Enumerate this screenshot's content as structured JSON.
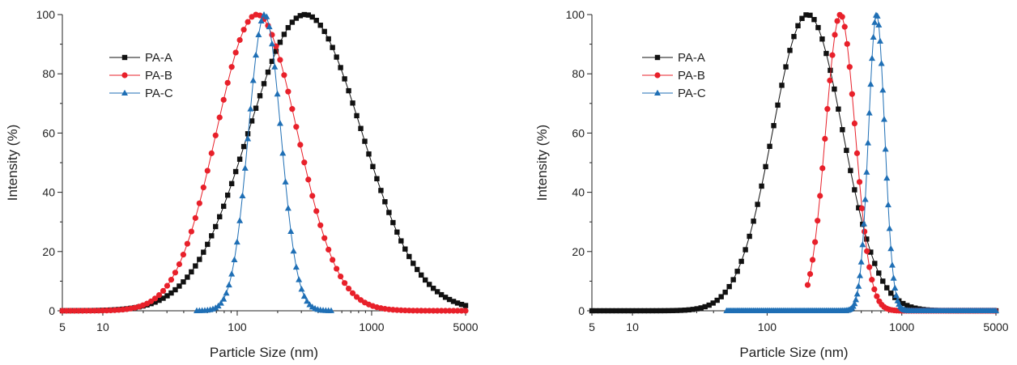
{
  "chart_data": [
    {
      "type": "line",
      "title": "",
      "xlabel": "Particle Size (nm)",
      "ylabel": "Intensity (%)",
      "x_scale": "log",
      "xlim": [
        5,
        5000
      ],
      "ylim": [
        0,
        100
      ],
      "x_ticks": [
        5,
        10,
        100,
        1000,
        5000
      ],
      "x_tick_labels": [
        "5",
        "10",
        "100",
        "1000",
        "5000"
      ],
      "y_ticks": [
        0,
        20,
        40,
        60,
        80,
        100
      ],
      "y_tick_labels": [
        "0",
        "20",
        "40",
        "60",
        "80",
        "100"
      ],
      "grid": false,
      "legend_position": "upper-left",
      "series": [
        {
          "name": "PA-A",
          "color": "#111111",
          "marker": "square",
          "x_range": [
            5,
            5000
          ],
          "peak_x": 320,
          "peak_y": 100,
          "spread": 0.42
        },
        {
          "name": "PA-B",
          "color": "#e8202a",
          "marker": "circle",
          "x_range": [
            5,
            5000
          ],
          "peak_x": 140,
          "peak_y": 100,
          "spread": 0.3
        },
        {
          "name": "PA-C",
          "color": "#1f6fb5",
          "marker": "triangle",
          "x_range": [
            50,
            500
          ],
          "peak_x": 160,
          "peak_y": 100,
          "spread": 0.12
        }
      ]
    },
    {
      "type": "line",
      "title": "",
      "xlabel": "Particle Size (nm)",
      "ylabel": "Intensity (%)",
      "x_scale": "log",
      "xlim": [
        5,
        5000
      ],
      "ylim": [
        0,
        100
      ],
      "x_ticks": [
        5,
        10,
        100,
        1000,
        5000
      ],
      "x_tick_labels": [
        "5",
        "10",
        "100",
        "1000",
        "5000"
      ],
      "y_ticks": [
        0,
        20,
        40,
        60,
        80,
        100
      ],
      "y_tick_labels": [
        "0",
        "20",
        "40",
        "60",
        "80",
        "100"
      ],
      "grid": false,
      "legend_position": "upper-left",
      "series": [
        {
          "name": "PA-A",
          "color": "#111111",
          "marker": "square",
          "x_range": [
            5,
            5000
          ],
          "peak_x": 200,
          "peak_y": 100,
          "spread": 0.26
        },
        {
          "name": "PA-B",
          "color": "#e8202a",
          "marker": "circle",
          "x_range": [
            200,
            5000
          ],
          "peak_x": 350,
          "peak_y": 100,
          "spread": 0.11
        },
        {
          "name": "PA-C",
          "color": "#1f6fb5",
          "marker": "triangle",
          "x_range": [
            50,
            5000
          ],
          "peak_x": 650,
          "peak_y": 100,
          "spread": 0.06
        }
      ]
    }
  ]
}
